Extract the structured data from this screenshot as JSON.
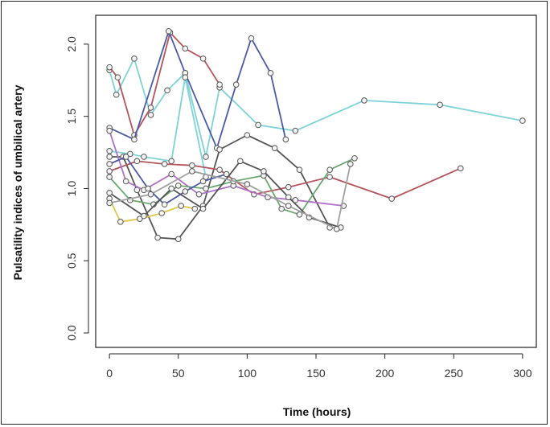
{
  "chart_data": {
    "type": "line",
    "title": "",
    "xlabel": "Time (hours)",
    "ylabel": "Pulsatility indices of umbilical artery",
    "xlim": [
      -10,
      310
    ],
    "ylim": [
      -0.1,
      2.2
    ],
    "x_ticks": [
      0,
      50,
      100,
      150,
      200,
      250,
      300
    ],
    "y_ticks": [
      0.0,
      0.5,
      1.0,
      1.5,
      2.0
    ],
    "x_tick_labels": [
      "0",
      "50",
      "100",
      "150",
      "200",
      "250",
      "300"
    ],
    "y_tick_labels": [
      "0.0",
      "0.5",
      "1.0",
      "1.5",
      "2.0"
    ],
    "grid": false,
    "legend": "none",
    "series": [
      {
        "color": "#7ed3d8",
        "x": [
          0,
          5,
          18,
          30,
          42,
          55,
          70,
          80,
          108,
          135,
          185,
          240,
          300
        ],
        "y": [
          1.82,
          1.65,
          1.9,
          1.51,
          1.68,
          1.8,
          1.22,
          1.7,
          1.44,
          1.4,
          1.61,
          1.58,
          1.47
        ]
      },
      {
        "color": "#b5555a",
        "x": [
          0,
          6,
          18,
          30,
          44,
          55,
          68,
          80
        ],
        "y": [
          1.84,
          1.77,
          1.37,
          1.56,
          2.08,
          1.97,
          1.9,
          1.72
        ]
      },
      {
        "color": "#4a5aa8",
        "x": [
          0,
          18,
          43,
          55,
          78,
          92,
          103,
          117,
          128
        ],
        "y": [
          1.42,
          1.34,
          2.09,
          1.8,
          1.28,
          1.72,
          2.04,
          1.8,
          1.34
        ]
      },
      {
        "color": "#7ed3d8",
        "x": [
          0,
          15,
          25,
          45,
          55,
          70
        ],
        "y": [
          1.26,
          1.24,
          1.22,
          1.19,
          1.77,
          1.08
        ]
      },
      {
        "color": "#555555",
        "x": [
          0,
          10,
          20,
          35,
          50,
          68,
          80,
          100,
          120,
          138,
          160
        ],
        "y": [
          1.22,
          1.22,
          0.99,
          0.66,
          0.65,
          0.88,
          1.27,
          1.37,
          1.28,
          1.13,
          0.73
        ]
      },
      {
        "color": "#b5555a",
        "x": [
          0,
          20,
          40,
          60,
          80,
          105,
          130,
          160,
          205,
          255
        ],
        "y": [
          1.12,
          1.19,
          1.17,
          1.16,
          1.13,
          0.96,
          1.01,
          1.08,
          0.93,
          1.14
        ]
      },
      {
        "color": "#b070c8",
        "x": [
          0,
          12,
          25,
          45,
          65,
          90,
          115,
          135,
          170
        ],
        "y": [
          1.4,
          1.05,
          0.99,
          1.1,
          0.96,
          1.02,
          0.94,
          0.92,
          0.88
        ]
      },
      {
        "color": "#6aa870",
        "x": [
          0,
          15,
          32,
          50,
          70,
          90,
          112,
          125,
          138,
          160,
          178
        ],
        "y": [
          1.08,
          0.92,
          0.89,
          1.02,
          1.0,
          1.05,
          1.09,
          0.86,
          0.82,
          1.13,
          1.21
        ]
      },
      {
        "color": "#4a5aa8",
        "x": [
          0,
          12,
          28,
          40,
          55,
          68,
          85
        ],
        "y": [
          1.17,
          1.22,
          1.0,
          0.89,
          0.98,
          1.05,
          1.1
        ]
      },
      {
        "color": "#e0c84a",
        "x": [
          0,
          8,
          22,
          38,
          52,
          62
        ],
        "y": [
          0.93,
          0.77,
          0.79,
          0.83,
          0.88,
          0.86
        ]
      },
      {
        "color": "#555555",
        "x": [
          0,
          25,
          45,
          68,
          95,
          112,
          130,
          145,
          168
        ],
        "y": [
          0.97,
          0.81,
          1.0,
          0.86,
          1.19,
          1.12,
          0.94,
          0.8,
          0.73
        ]
      },
      {
        "color": "#a0a0a0",
        "x": [
          0,
          30,
          60,
          100,
          130,
          165,
          175
        ],
        "y": [
          0.9,
          0.96,
          1.12,
          1.03,
          0.88,
          0.72,
          1.17
        ]
      }
    ]
  }
}
